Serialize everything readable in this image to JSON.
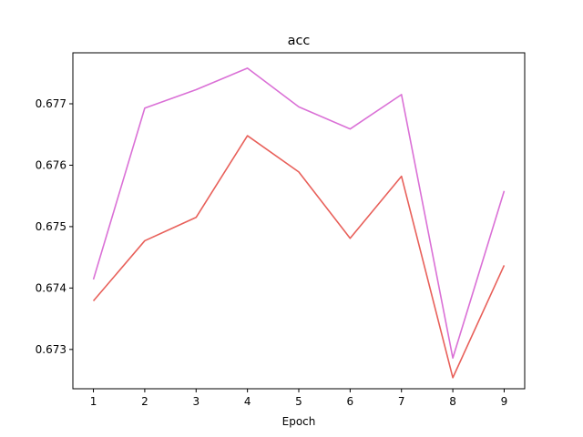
{
  "chart_data": {
    "type": "line",
    "title": "acc",
    "xlabel": "Epoch",
    "ylabel": "",
    "x": [
      1,
      2,
      3,
      4,
      5,
      6,
      7,
      8,
      9
    ],
    "xticks": [
      "1",
      "2",
      "3",
      "4",
      "5",
      "6",
      "7",
      "8",
      "9"
    ],
    "yticks": [
      "0.673",
      "0.674",
      "0.675",
      "0.676",
      "0.677"
    ],
    "xlim": [
      0.6,
      9.4
    ],
    "ylim": [
      0.67236,
      0.67783
    ],
    "grid": false,
    "series": [
      {
        "color": "#da70d6",
        "values": [
          0.67414,
          0.67693,
          0.67723,
          0.67758,
          0.67695,
          0.67659,
          0.67715,
          0.67286,
          0.67558
        ]
      },
      {
        "color": "#e8605a",
        "values": [
          0.67379,
          0.67477,
          0.67515,
          0.67648,
          0.67589,
          0.67481,
          0.67582,
          0.67254,
          0.67437
        ]
      }
    ]
  }
}
